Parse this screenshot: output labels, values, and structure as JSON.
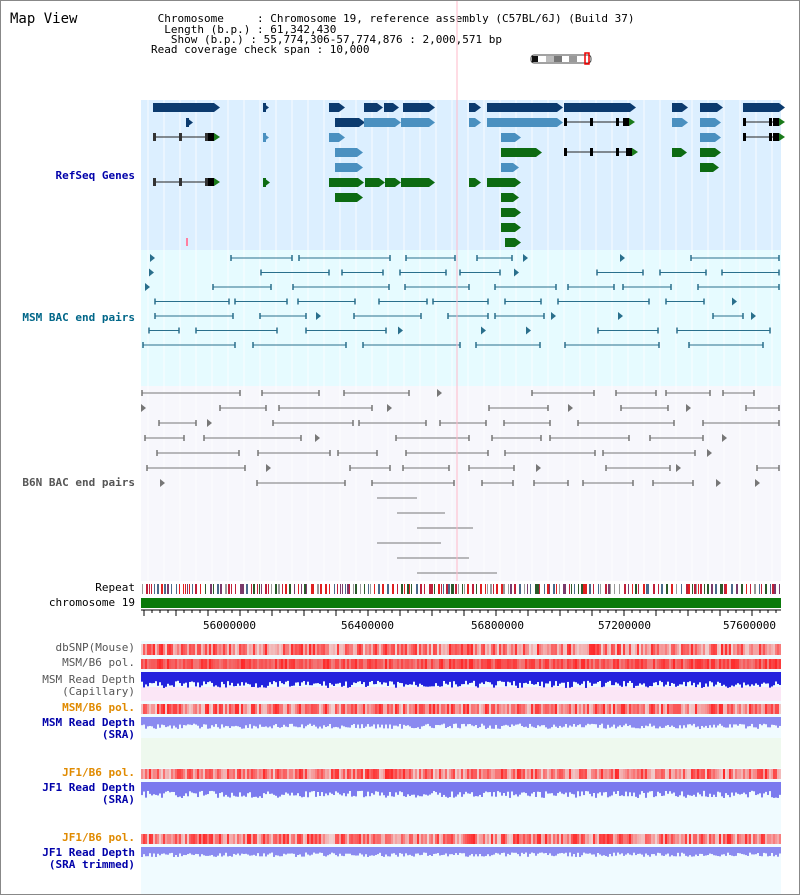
{
  "page": {
    "title": "Map View"
  },
  "info": {
    "chromosome_line": " Chromosome     : Chromosome 19, reference assembly (C57BL/6J) (Build 37)",
    "length_line": "  Length (b.p.) : 61,342,430",
    "show_line": "   Show (b.p.) : 55,774,306-57,774,876 : 2,000,571 bp",
    "coverage_line": "Read coverage check span : 10,000"
  },
  "tracks": {
    "refseq": "RefSeq Genes",
    "msm_bac": "MSM BAC end pairs",
    "b6n_bac": "B6N BAC end pairs",
    "repeat": "Repeat",
    "chromosome": "chromosome 19",
    "dbsnp": "dbSNP(Mouse)",
    "msm_pol": "MSM/B6 pol.",
    "msm_depth_cap_1": "MSM Read Depth",
    "msm_depth_cap_2": "(Capillary)",
    "msm_pol2": "MSM/B6 pol.",
    "msm_depth_sra_1": "MSM Read Depth",
    "msm_depth_sra_2": "(SRA)",
    "jf1_pol": "JF1/B6 pol.",
    "jf1_depth_sra_1": "JF1 Read Depth",
    "jf1_depth_sra_2": "(SRA)",
    "jf1_pol2": "JF1/B6 pol.",
    "jf1_depth_trim_1": "JF1 Read Depth",
    "jf1_depth_trim_2": "(SRA trimmed)"
  },
  "axis": {
    "ticks": [
      "56000000",
      "56400000",
      "56800000",
      "57200000",
      "57600000"
    ]
  },
  "colors": {
    "refseq_bg": "#dcefff",
    "msm_bg": "#e6fbff",
    "b6n_bg": "#f4f4fb",
    "gene_dark": "#0b3a6e",
    "gene_mid": "#4a90c0",
    "gene_green": "#0d6b12",
    "bac_teal": "#2a6f8c",
    "bac_gray": "#777777",
    "chromosome_green": "#0a7a0a"
  }
}
